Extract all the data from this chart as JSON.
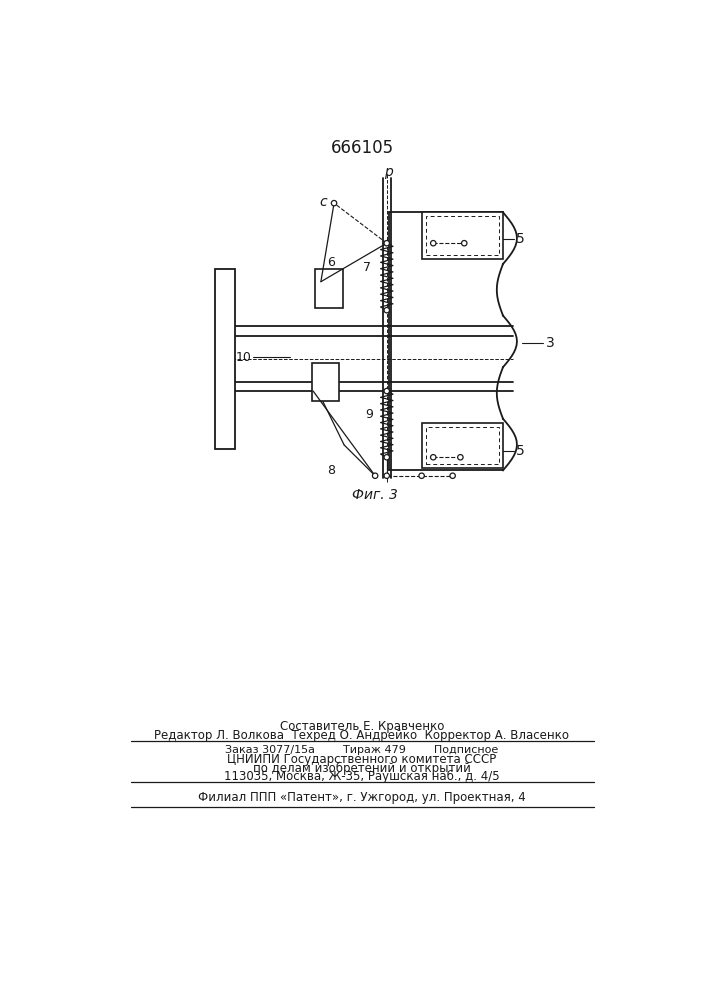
{
  "title": "666105",
  "fig_label": "Фиг. 3",
  "bg_color": "#ffffff",
  "line_color": "#1a1a1a",
  "labels": {
    "num_3": "3",
    "num_5a": "5",
    "num_5b": "5",
    "num_6": "6",
    "num_7": "7",
    "num_8": "8",
    "num_9": "9",
    "num_10": "10",
    "letter_c": "с",
    "letter_p": "р"
  },
  "footer": {
    "line1": "Составитель Е. Кравченко",
    "line2": "Редактор Л. Волкова  Техред О. Андрейко  Корректор А. Власенко",
    "line3": "Заказ 3077/15а        Тираж 479        Подписное",
    "line4": "ЦНИИПИ Государственного комитета СССР",
    "line5": "по делам изобретений и открытий",
    "line6": "113035, Москва, Ж-35, Раушская наб., д. 4/5",
    "line7": "Филиал ППП «Патент», г. Ужгород, ул. Проектная, 4"
  }
}
